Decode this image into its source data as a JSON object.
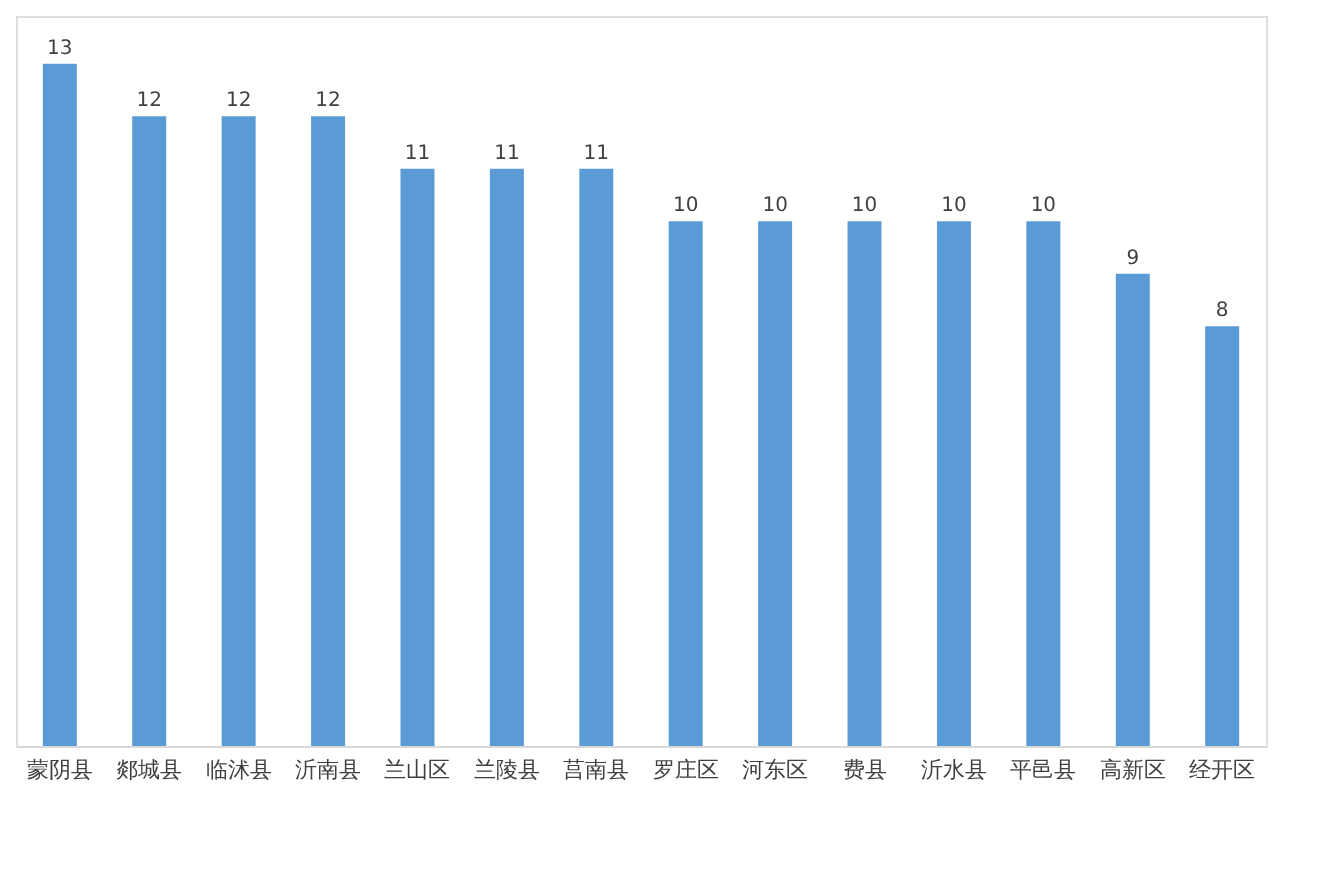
{
  "chart_data": {
    "type": "bar",
    "categories": [
      "蒙阴县",
      "郯城县",
      "临沭县",
      "沂南县",
      "兰山区",
      "兰陵县",
      "莒南县",
      "罗庄区",
      "河东区",
      "费县",
      "沂水县",
      "平邑县",
      "高新区",
      "经开区"
    ],
    "values": [
      13,
      12,
      12,
      12,
      11,
      11,
      11,
      10,
      10,
      10,
      10,
      10,
      9,
      8
    ],
    "color": "#5b9bd5",
    "data_labels": true
  }
}
